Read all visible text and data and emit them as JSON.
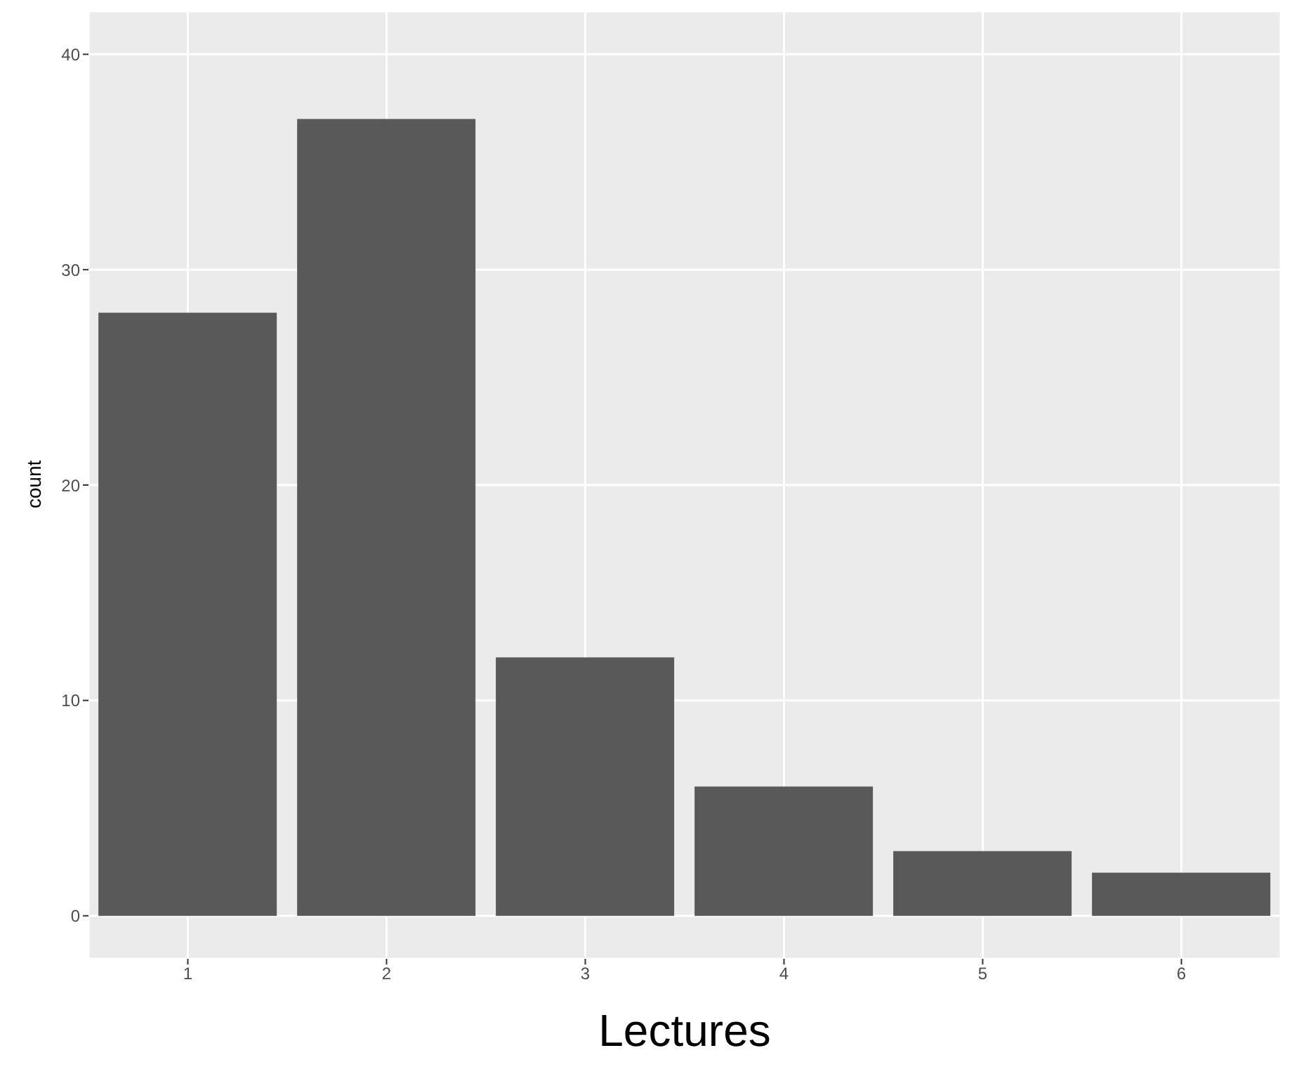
{
  "chart_data": {
    "type": "bar",
    "xlabel": "Lectures",
    "ylabel": "count",
    "categories": [
      "1",
      "2",
      "3",
      "4",
      "5",
      "6"
    ],
    "values": [
      28,
      37,
      12,
      6,
      3,
      2
    ],
    "color": "#595959",
    "ylim": [
      -2,
      42
    ],
    "yticks": [
      0,
      10,
      20,
      30,
      40
    ],
    "grid": true
  }
}
